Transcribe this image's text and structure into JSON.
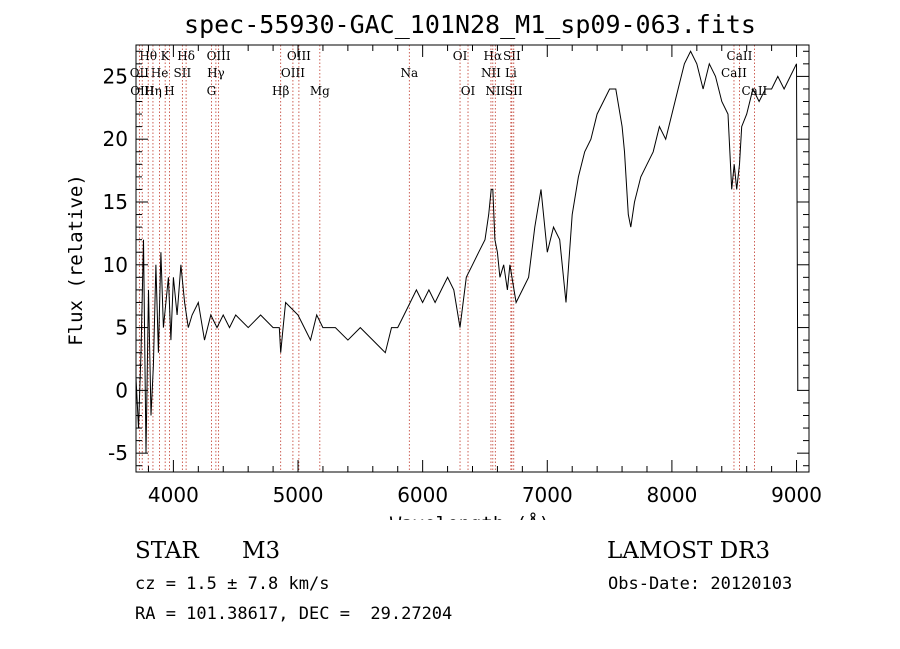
{
  "chart_data": {
    "type": "line",
    "title": "spec-55930-GAC_101N28_M1_sp09-063.fits",
    "xlabel": "Wavelength (Å)",
    "ylabel": "Flux (relative)",
    "xlim": [
      3700,
      9100
    ],
    "ylim": [
      -6.5,
      27.5
    ],
    "x_ticks": [
      4000,
      5000,
      6000,
      7000,
      8000,
      9000
    ],
    "y_ticks": [
      -5,
      0,
      5,
      10,
      15,
      20,
      25
    ],
    "series": [
      {
        "name": "flux",
        "x": [
          3700,
          3720,
          3740,
          3760,
          3780,
          3800,
          3820,
          3840,
          3860,
          3880,
          3900,
          3920,
          3940,
          3960,
          3980,
          4000,
          4030,
          4060,
          4090,
          4120,
          4150,
          4200,
          4250,
          4300,
          4350,
          4400,
          4450,
          4500,
          4600,
          4700,
          4800,
          4850,
          4861,
          4880,
          4900,
          5000,
          5050,
          5100,
          5150,
          5200,
          5300,
          5400,
          5500,
          5600,
          5700,
          5750,
          5800,
          5850,
          5900,
          5950,
          6000,
          6050,
          6100,
          6150,
          6200,
          6250,
          6300,
          6350,
          6400,
          6450,
          6500,
          6530,
          6550,
          6563,
          6580,
          6600,
          6620,
          6650,
          6680,
          6700,
          6750,
          6800,
          6850,
          6900,
          6950,
          7000,
          7050,
          7100,
          7150,
          7200,
          7250,
          7300,
          7350,
          7400,
          7450,
          7500,
          7550,
          7600,
          7620,
          7650,
          7670,
          7700,
          7750,
          7800,
          7850,
          7900,
          7950,
          8000,
          8050,
          8100,
          8150,
          8200,
          8250,
          8300,
          8350,
          8400,
          8450,
          8480,
          8500,
          8520,
          8542,
          8560,
          8600,
          8650,
          8700,
          8750,
          8800,
          8850,
          8900,
          8950,
          9000,
          9010
        ],
        "values": [
          1,
          -3,
          3,
          12,
          -5,
          8,
          -2,
          2,
          10,
          3,
          11,
          5,
          7,
          9,
          4,
          9,
          6,
          10,
          7,
          5,
          6,
          7,
          4,
          6,
          5,
          6,
          5,
          6,
          5,
          6,
          5,
          5,
          3,
          5,
          7,
          6,
          5,
          4,
          6,
          5,
          5,
          4,
          5,
          4,
          3,
          5,
          5,
          6,
          7,
          8,
          7,
          8,
          7,
          8,
          9,
          8,
          5,
          9,
          10,
          11,
          12,
          14,
          16,
          16,
          12,
          11,
          9,
          10,
          8,
          10,
          7,
          8,
          9,
          13,
          16,
          11,
          13,
          12,
          7,
          14,
          17,
          19,
          20,
          22,
          23,
          24,
          24,
          21,
          19,
          14,
          13,
          15,
          17,
          18,
          19,
          21,
          20,
          22,
          24,
          26,
          27,
          26,
          24,
          26,
          25,
          23,
          22,
          16,
          18,
          16,
          18,
          21,
          22,
          24,
          23,
          24,
          24,
          25,
          24,
          25,
          26,
          0
        ]
      }
    ],
    "lines": [
      {
        "name": "Hθ",
        "wave": 3798,
        "row": 0
      },
      {
        "name": "OII",
        "wave": 3727,
        "row": 1
      },
      {
        "name": "OIII",
        "wave": 3750,
        "row": 2
      },
      {
        "name": "K",
        "wave": 3934,
        "row": 0
      },
      {
        "name": "He",
        "wave": 3889,
        "row": 1
      },
      {
        "name": "Hη",
        "wave": 3836,
        "row": 2
      },
      {
        "name": "Hδ",
        "wave": 4102,
        "row": 0
      },
      {
        "name": "SII",
        "wave": 4072,
        "row": 1
      },
      {
        "name": "H",
        "wave": 3969,
        "row": 2
      },
      {
        "name": "OIII",
        "wave": 4363,
        "row": 0
      },
      {
        "name": "Hγ",
        "wave": 4341,
        "row": 1
      },
      {
        "name": "G",
        "wave": 4305,
        "row": 2
      },
      {
        "name": "OIII",
        "wave": 5007,
        "row": 0
      },
      {
        "name": "OIII",
        "wave": 4959,
        "row": 1
      },
      {
        "name": "Hβ",
        "wave": 4861,
        "row": 2
      },
      {
        "name": "Mg",
        "wave": 5175,
        "row": 2
      },
      {
        "name": "Na",
        "wave": 5893,
        "row": 1
      },
      {
        "name": "OI",
        "wave": 6300,
        "row": 0
      },
      {
        "name": "OI",
        "wave": 6364,
        "row": 2
      },
      {
        "name": "Hα",
        "wave": 6563,
        "row": 0
      },
      {
        "name": "SII",
        "wave": 6716,
        "row": 0
      },
      {
        "name": "NII",
        "wave": 6548,
        "row": 1
      },
      {
        "name": "Li",
        "wave": 6708,
        "row": 1
      },
      {
        "name": "NII",
        "wave": 6583,
        "row": 2
      },
      {
        "name": "SII",
        "wave": 6731,
        "row": 2
      },
      {
        "name": "CaII",
        "wave": 8542,
        "row": 0
      },
      {
        "name": "CaII",
        "wave": 8498,
        "row": 1
      },
      {
        "name": "CaII",
        "wave": 8662,
        "row": 2
      }
    ]
  },
  "info": {
    "object_class": "STAR",
    "subclass": "M3",
    "survey": "LAMOST DR3",
    "cz": "cz = 1.5 ± 7.8 km/s",
    "obs_date": "Obs-Date: 20120103",
    "coords": "RA = 101.38617, DEC =  29.27204"
  }
}
